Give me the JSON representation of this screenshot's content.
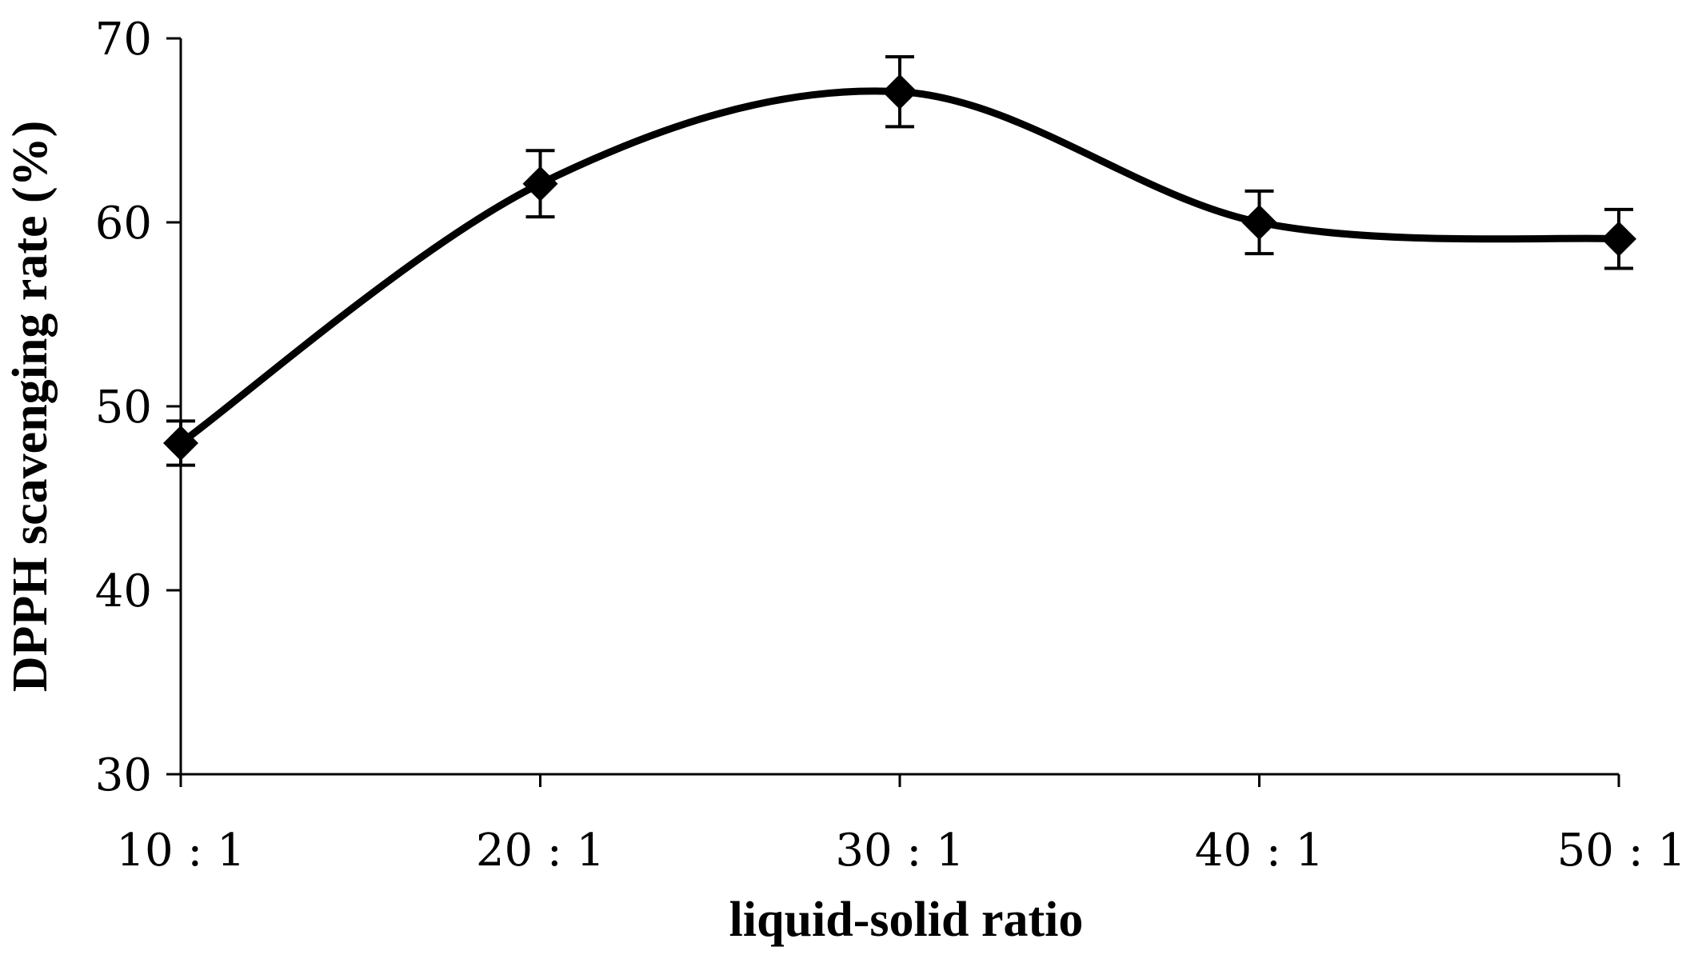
{
  "chart_data": {
    "type": "line",
    "title": "",
    "xlabel": "liquid-solid ratio",
    "ylabel": "DPPH scavenging rate (%)",
    "categories": [
      "10 : 1",
      "20 : 1",
      "30 : 1",
      "40 : 1",
      "50 : 1"
    ],
    "ylim": [
      30,
      70
    ],
    "yticks": [
      30,
      40,
      50,
      60,
      70
    ],
    "grid": false,
    "legend": "none",
    "smooth": true,
    "series": [
      {
        "values": [
          48.0,
          62.1,
          67.1,
          60.0,
          59.1
        ],
        "error": [
          1.2,
          1.8,
          1.9,
          1.7,
          1.6
        ],
        "marker": "diamond",
        "color": "#000000"
      }
    ]
  }
}
